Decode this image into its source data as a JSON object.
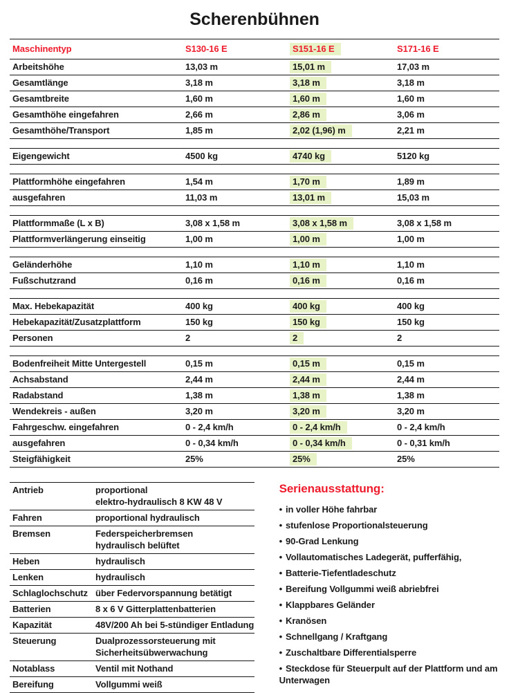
{
  "page_title": "Scherenbühnen",
  "colors": {
    "accent_red": "#ee1b2c",
    "highlight_green": "#e7f3c7"
  },
  "main_table": {
    "header": {
      "label": "Maschinentyp",
      "columns": [
        "S130-16 E",
        "S151-16 E",
        "S171-16 E"
      ],
      "highlight_column_index": 1
    },
    "sections": [
      {
        "rows": [
          {
            "label": "Arbeitshöhe",
            "values": [
              "13,03 m",
              "15,01 m",
              "17,03 m"
            ]
          },
          {
            "label": "Gesamtlänge",
            "values": [
              "3,18 m",
              "3,18 m",
              "3,18 m"
            ]
          },
          {
            "label": "Gesamtbreite",
            "values": [
              "1,60 m",
              "1,60 m",
              "1,60 m"
            ]
          },
          {
            "label": "Gesamthöhe eingefahren",
            "values": [
              "2,66 m",
              "2,86 m",
              "3,06 m"
            ]
          },
          {
            "label": "Gesamthöhe/Transport",
            "values": [
              "1,85 m",
              "2,02 (1,96) m",
              "2,21 m"
            ]
          }
        ]
      },
      {
        "rows": [
          {
            "label": "Eigengewicht",
            "values": [
              "4500 kg",
              "4740 kg",
              "5120 kg"
            ]
          }
        ]
      },
      {
        "rows": [
          {
            "label": "Plattformhöhe eingefahren",
            "values": [
              "1,54 m",
              "1,70 m",
              "1,89 m"
            ]
          },
          {
            "label": "ausgefahren",
            "values": [
              "11,03 m",
              "13,01 m",
              "15,03 m"
            ]
          }
        ]
      },
      {
        "rows": [
          {
            "label": "Plattformmaße (L x B)",
            "values": [
              "3,08 x 1,58 m",
              "3,08 x 1,58 m",
              "3,08 x 1,58 m"
            ]
          },
          {
            "label": "Plattformverlängerung einseitig",
            "values": [
              "1,00 m",
              "1,00 m",
              "1,00 m"
            ]
          }
        ]
      },
      {
        "rows": [
          {
            "label": "Geländerhöhe",
            "values": [
              "1,10 m",
              "1,10 m",
              "1,10 m"
            ]
          },
          {
            "label": "Fußschutzrand",
            "values": [
              "0,16 m",
              "0,16 m",
              "0,16 m"
            ]
          }
        ]
      },
      {
        "rows": [
          {
            "label": "Max. Hebekapazität",
            "values": [
              "400 kg",
              "400 kg",
              "400 kg"
            ]
          },
          {
            "label": "Hebekapazität/Zusatzplattform",
            "values": [
              "150 kg",
              "150 kg",
              "150 kg"
            ]
          },
          {
            "label": "Personen",
            "values": [
              "2",
              "2",
              "2"
            ]
          }
        ]
      },
      {
        "rows": [
          {
            "label": "Bodenfreiheit Mitte Untergestell",
            "values": [
              "0,15 m",
              "0,15 m",
              "0,15 m"
            ]
          },
          {
            "label": "Achsabstand",
            "values": [
              "2,44 m",
              "2,44 m",
              "2,44 m"
            ]
          },
          {
            "label": "Radabstand",
            "values": [
              "1,38 m",
              "1,38 m",
              "1,38 m"
            ]
          },
          {
            "label": "Wendekreis - außen",
            "values": [
              "3,20 m",
              "3,20 m",
              "3,20 m"
            ]
          },
          {
            "label": "Fahrgeschw. eingefahren",
            "values": [
              "0 - 2,4 km/h",
              "0 - 2,4 km/h",
              "0 - 2,4 km/h"
            ]
          },
          {
            "label": "ausgefahren",
            "values": [
              "0 - 0,34 km/h",
              "0 - 0,34 km/h",
              "0 - 0,31 km/h"
            ]
          },
          {
            "label": "Steigfähigkeit",
            "values": [
              "25%",
              "25%",
              "25%"
            ]
          }
        ]
      }
    ]
  },
  "spec_table": {
    "rows": [
      {
        "label": "Antrieb",
        "value": "proportional\nelektro-hydraulisch 8 KW 48 V"
      },
      {
        "label": "Fahren",
        "value": "proportional hydraulisch"
      },
      {
        "label": "Bremsen",
        "value": "Federspeicherbremsen\nhydraulisch belüftet"
      },
      {
        "label": "Heben",
        "value": "hydraulisch"
      },
      {
        "label": "Lenken",
        "value": "hydraulisch"
      },
      {
        "label": "Schlaglochschutz",
        "value": "über Federvorspannung betätigt"
      },
      {
        "label": "Batterien",
        "value": "8 x 6 V Gitterplattenbatterien"
      },
      {
        "label": "Kapazität",
        "value": "48V/200 Ah bei 5-stündiger Entladung"
      },
      {
        "label": "Steuerung",
        "value": "Dualprozessorsteuerung mit\nSicherheitsübwerwachung"
      },
      {
        "label": "Notablass",
        "value": "Ventil mit Nothand"
      },
      {
        "label": "Bereifung",
        "value": "Vollgummi weiß"
      }
    ]
  },
  "features": {
    "heading": "Serienausstattung:",
    "bullet_char": "•",
    "items": [
      "in voller Höhe fahrbar",
      "stufenlose Proportionalsteuerung",
      "90-Grad Lenkung",
      "Vollautomatisches Ladegerät, pufferfähig,",
      "Batterie-Tiefentladeschutz",
      "Bereifung Vollgummi weiß abriebfrei",
      "Klappbares Geländer",
      "Kranösen",
      "Schnellgang / Kraftgang",
      "Zuschaltbare Differentialsperre",
      "Steckdose für Steuerpult auf der Plattform und am Unterwagen"
    ]
  }
}
